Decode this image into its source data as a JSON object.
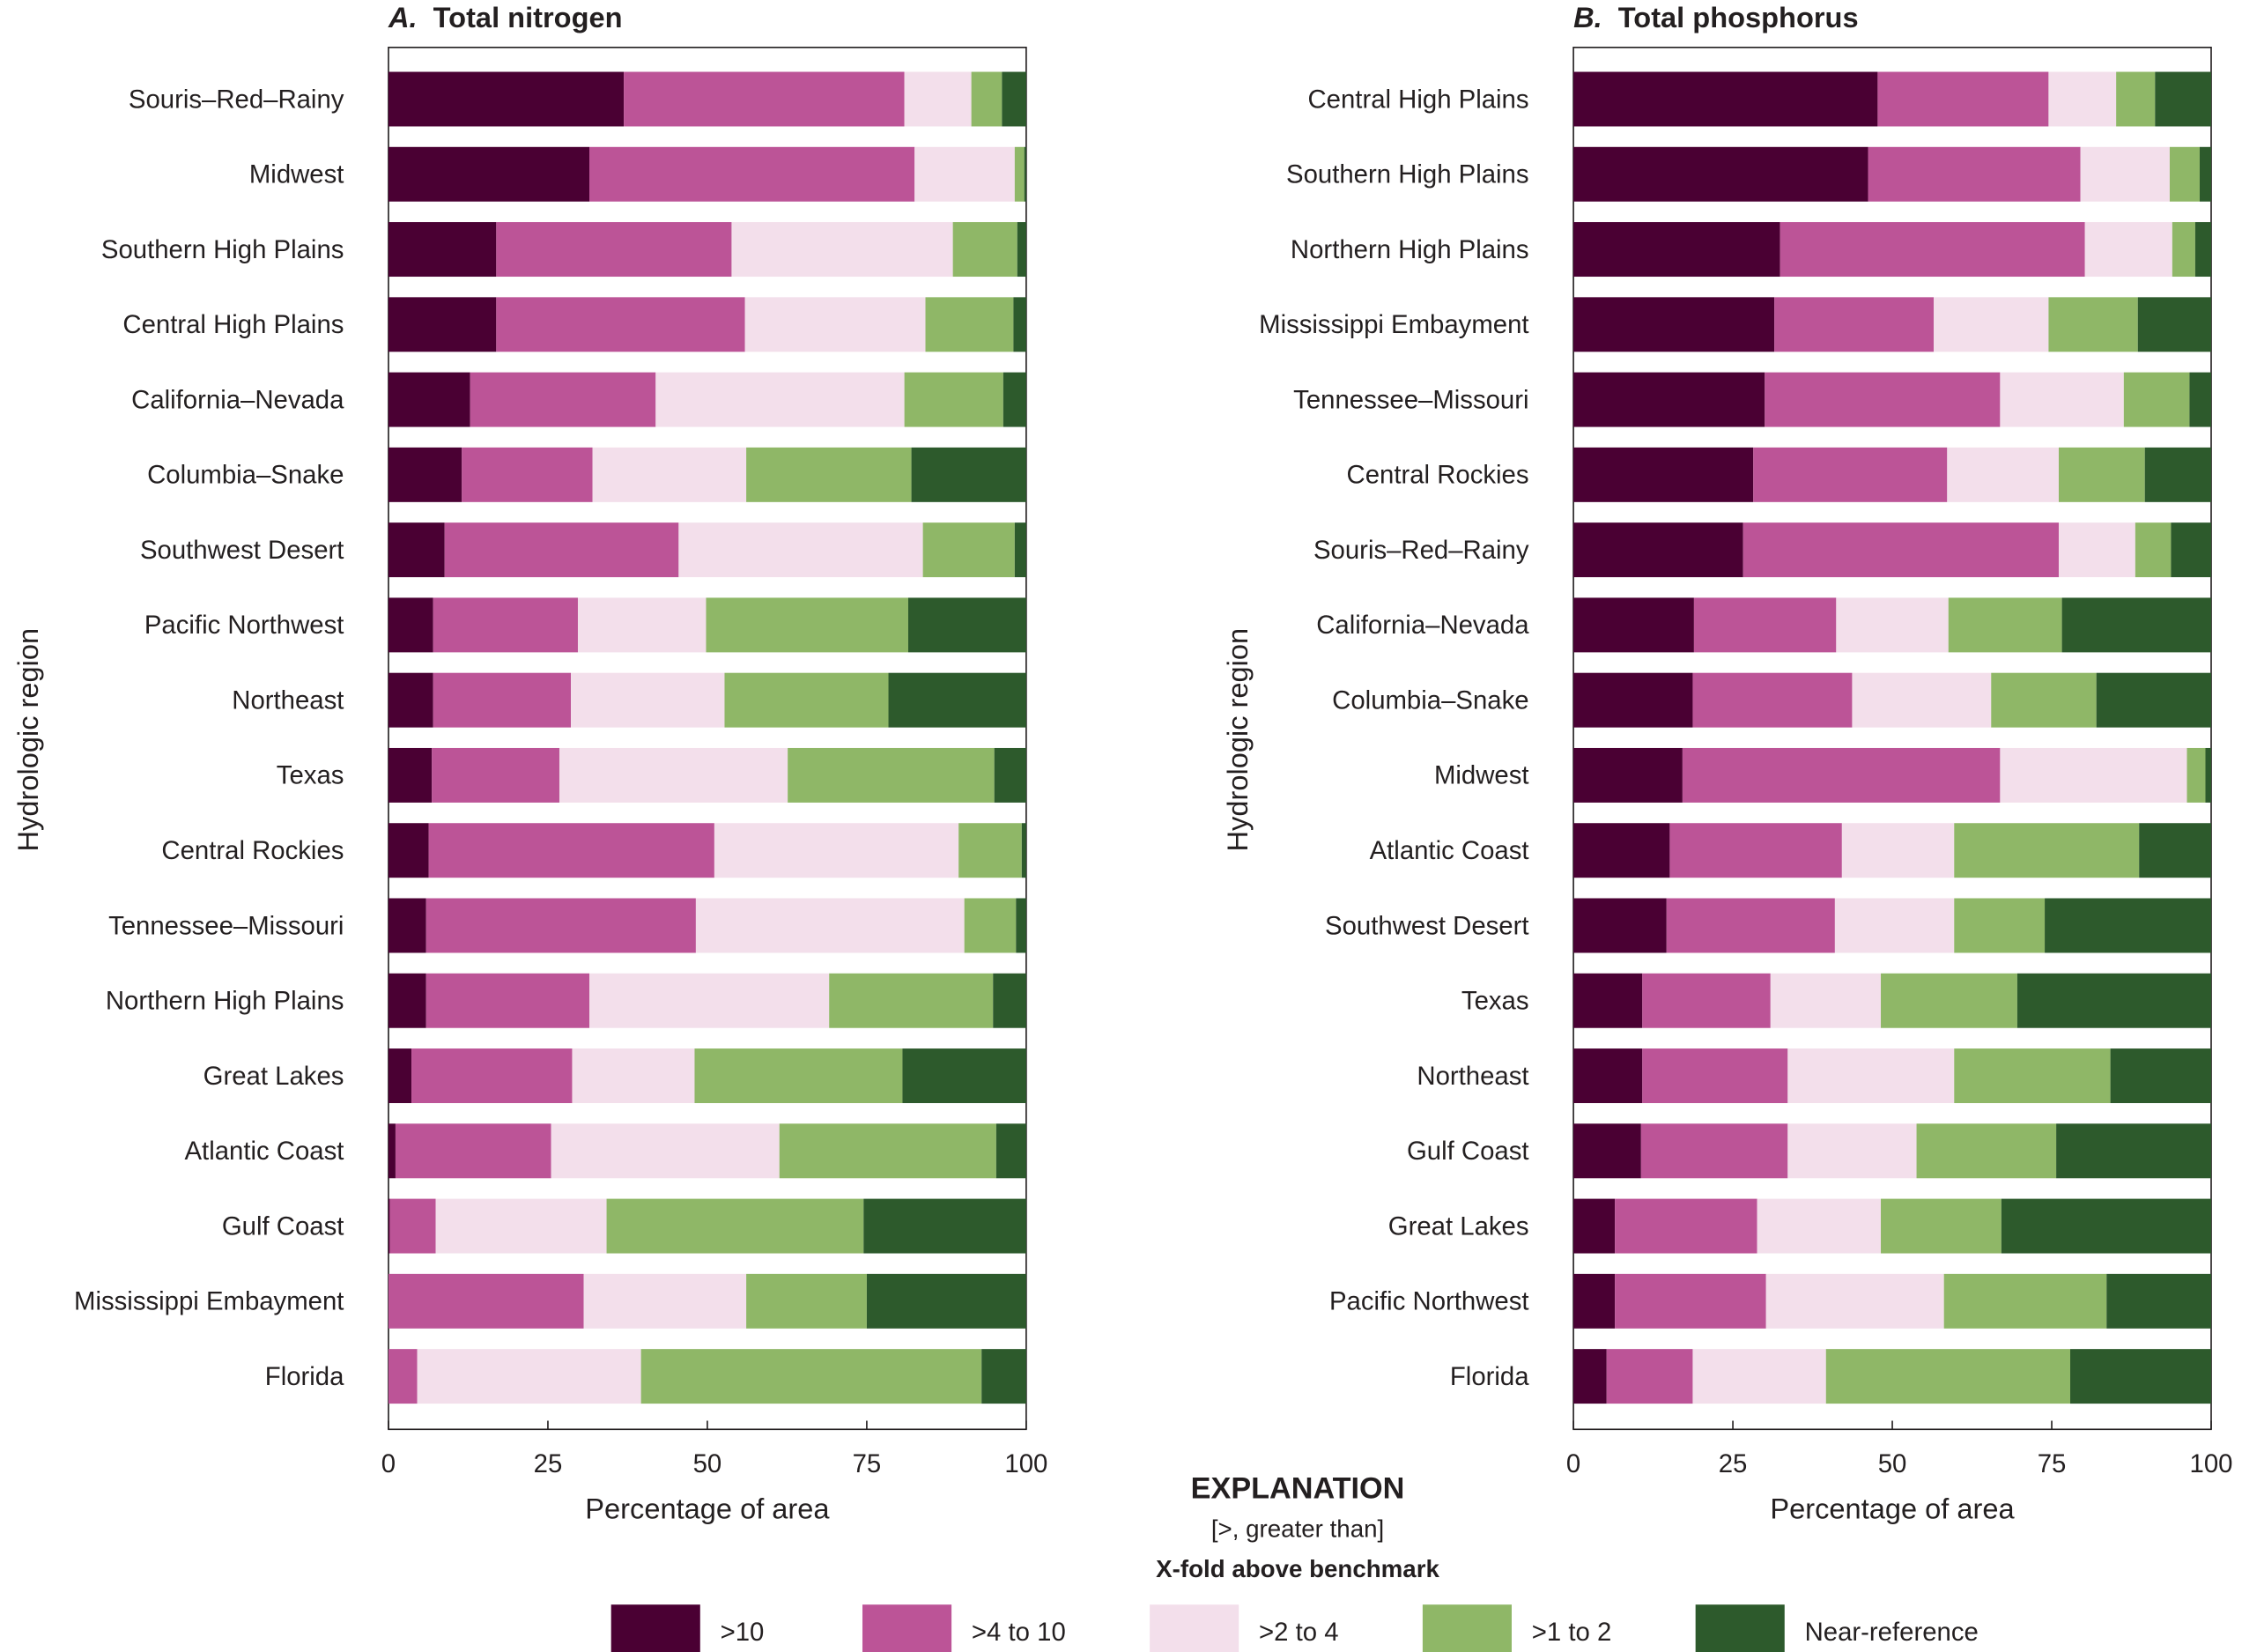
{
  "legend": {
    "title": "EXPLANATION",
    "note": "[>, greater than]",
    "subtitle": "X-fold above benchmark",
    "entries": [
      {
        "label": ">10",
        "color": "#4a0033"
      },
      {
        "label": ">4 to 10",
        "color": "#bc5497"
      },
      {
        "label": ">2 to 4",
        "color": "#f3dfeb"
      },
      {
        "label": ">1 to 2",
        "color": "#8fb767"
      },
      {
        "label": "Near-reference",
        "color": "#2d5a2c"
      }
    ]
  },
  "chart_data": [
    {
      "type": "bar",
      "orientation": "horizontal",
      "stacked": true,
      "panel": "A.",
      "title": "Total nitrogen",
      "xlabel": "Percentage of area",
      "ylabel": "Hydrologic region",
      "xlim": [
        0,
        100
      ],
      "xticks": [
        "0",
        "25",
        "50",
        "75",
        "100"
      ],
      "categories": [
        "Souris–Red–Rainy",
        "Midwest",
        "Southern High Plains",
        "Central High Plains",
        "California–Nevada",
        "Columbia–Snake",
        "Southwest Desert",
        "Pacific Northwest",
        "Northeast",
        "Texas",
        "Central Rockies",
        "Tennessee–Missouri",
        "Northern High Plains",
        "Great Lakes",
        "Atlantic Coast",
        "Gulf Coast",
        "Mississippi Embayment",
        "Florida"
      ],
      "series": [
        {
          "name": ">10",
          "values": [
            36.9,
            31.5,
            16.9,
            16.9,
            12.8,
            11.5,
            8.8,
            7.0,
            7.0,
            6.8,
            6.3,
            5.9,
            5.9,
            3.6,
            1.1,
            0.2,
            0,
            0
          ]
        },
        {
          "name": ">4 to 10",
          "values": [
            44.0,
            51.0,
            36.9,
            39.0,
            29.1,
            20.5,
            36.7,
            22.7,
            21.6,
            20.0,
            44.8,
            42.3,
            25.6,
            25.2,
            24.4,
            7.2,
            30.6,
            4.5
          ]
        },
        {
          "name": ">2 to 4",
          "values": [
            10.5,
            15.7,
            34.7,
            28.3,
            39.0,
            24.1,
            38.3,
            20.1,
            24.1,
            35.8,
            38.3,
            42.1,
            37.6,
            19.2,
            35.8,
            26.8,
            25.5,
            35.1
          ]
        },
        {
          "name": ">1 to 2",
          "values": [
            4.8,
            1.5,
            10.1,
            13.8,
            15.5,
            25.9,
            14.4,
            31.7,
            25.7,
            32.4,
            9.9,
            8.1,
            25.7,
            32.6,
            34.0,
            40.3,
            18.9,
            53.4
          ]
        },
        {
          "name": "Near-reference",
          "values": [
            3.8,
            0.3,
            1.4,
            2.0,
            3.6,
            18.0,
            1.8,
            18.5,
            21.6,
            5.0,
            0.7,
            1.6,
            5.2,
            19.4,
            4.7,
            25.5,
            25.0,
            7.0
          ]
        }
      ]
    },
    {
      "type": "bar",
      "orientation": "horizontal",
      "stacked": true,
      "panel": "B.",
      "title": "Total phosphorus",
      "xlabel": "Percentage of area",
      "ylabel": "Hydrologic region",
      "xlim": [
        0,
        100
      ],
      "xticks": [
        "0",
        "25",
        "50",
        "75",
        "100"
      ],
      "categories": [
        "Central High Plains",
        "Southern High Plains",
        "Northern High Plains",
        "Mississippi Embayment",
        "Tennessee–Missouri",
        "Central Rockies",
        "Souris–Red–Rainy",
        "California–Nevada",
        "Columbia–Snake",
        "Midwest",
        "Atlantic Coast",
        "Southwest Desert",
        "Texas",
        "Northeast",
        "Gulf Coast",
        "Great Lakes",
        "Pacific Northwest",
        "Florida"
      ],
      "series": [
        {
          "name": ">10",
          "values": [
            47.7,
            46.2,
            32.4,
            31.5,
            30.0,
            28.2,
            26.6,
            18.9,
            18.7,
            17.1,
            15.1,
            14.6,
            10.8,
            10.8,
            10.6,
            6.5,
            6.5,
            5.2
          ]
        },
        {
          "name": ">4 to 10",
          "values": [
            26.8,
            33.3,
            47.8,
            25.0,
            36.9,
            30.4,
            49.5,
            22.3,
            25.0,
            49.8,
            27.0,
            26.4,
            20.1,
            22.8,
            23.0,
            22.3,
            23.7,
            13.5
          ]
        },
        {
          "name": ">2 to 4",
          "values": [
            10.6,
            14.0,
            13.7,
            18.0,
            19.4,
            17.5,
            12.0,
            17.6,
            21.8,
            29.3,
            17.6,
            18.7,
            17.3,
            26.1,
            20.2,
            19.4,
            27.9,
            20.9
          ]
        },
        {
          "name": ">1 to 2",
          "values": [
            6.1,
            4.7,
            3.6,
            14.0,
            10.3,
            13.5,
            5.6,
            17.8,
            16.5,
            2.9,
            29.0,
            14.2,
            21.4,
            24.5,
            21.9,
            18.9,
            25.5,
            38.3
          ]
        },
        {
          "name": "Near-reference",
          "values": [
            8.8,
            1.8,
            2.5,
            11.5,
            3.4,
            10.4,
            6.3,
            23.4,
            18.0,
            0.9,
            11.3,
            26.1,
            30.4,
            15.8,
            24.3,
            32.9,
            16.4,
            22.1
          ]
        }
      ]
    }
  ]
}
